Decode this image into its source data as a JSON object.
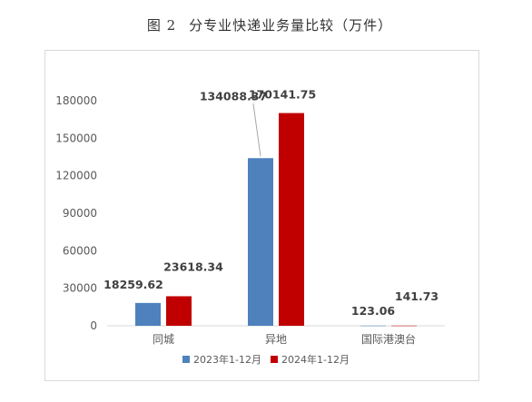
{
  "caption": {
    "figure": "图 2",
    "title": "分专业快递业务量比较（万件）"
  },
  "colors": {
    "series_2023": "#4f81bd",
    "series_2024": "#c00000"
  },
  "chart_data": {
    "type": "bar",
    "title": "分专业快递业务量比较（万件）",
    "categories": [
      "同城",
      "异地",
      "国际港澳台"
    ],
    "series": [
      {
        "name": "2023年1-12月",
        "values": [
          18259.62,
          134088.37,
          123.06
        ],
        "labels": [
          "18259.62",
          "134088.37",
          "123.06"
        ]
      },
      {
        "name": "2024年1-12月",
        "values": [
          23618.34,
          170141.75,
          141.73
        ],
        "labels": [
          "23618.34",
          "170141.75",
          "141.73"
        ]
      }
    ],
    "yticks": [
      "0",
      "30000",
      "60000",
      "90000",
      "120000",
      "150000",
      "180000"
    ],
    "ylim": [
      0,
      180000
    ],
    "grid": false,
    "legend": "bottom"
  }
}
